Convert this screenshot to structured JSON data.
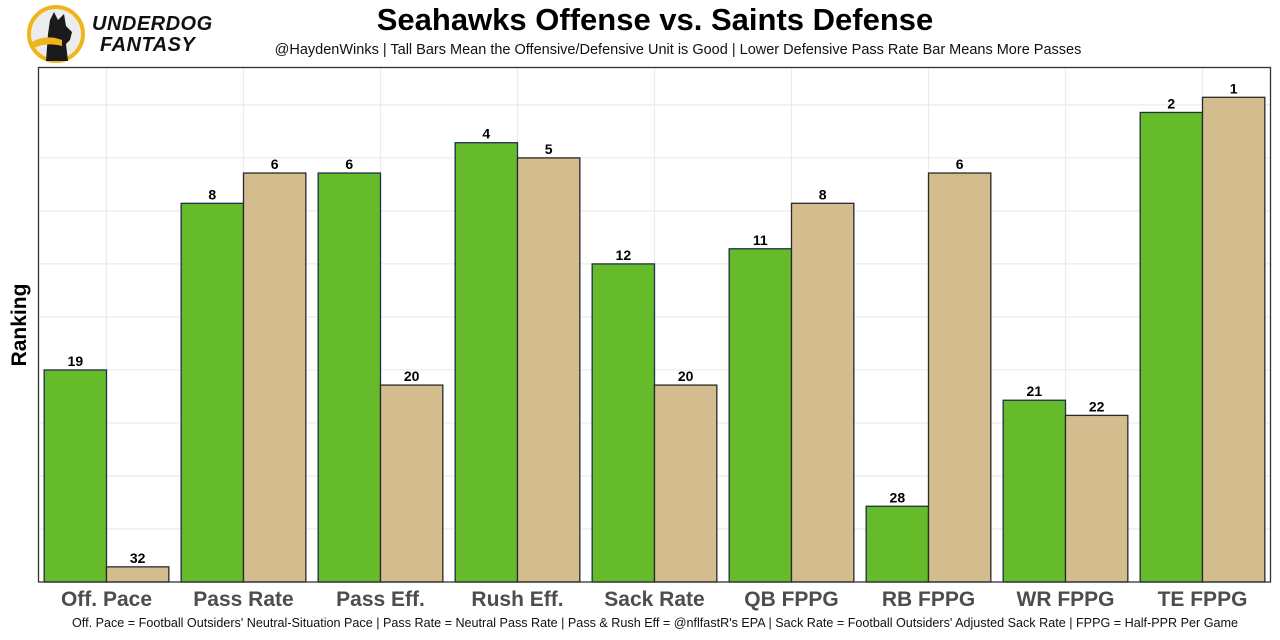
{
  "brand": {
    "logo_line1": "UNDERDOG",
    "logo_line2": "FANTASY",
    "logo_icon": "dog-head-icon",
    "colors": {
      "ring": "#f0b51b",
      "dog": "#1a1a1a"
    }
  },
  "colors": {
    "offense": "#66bb2a",
    "defense": "#d3bc8d",
    "bar_border": "#1f2f4a",
    "grid": "#ebebeb",
    "panel_border": "#333333"
  },
  "chart_data": {
    "type": "bar",
    "title": "Seahawks Offense vs. Saints Defense",
    "subtitle": "@HaydenWinks | Tall Bars Mean the Offensive/Defensive Unit is Good | Lower Defensive Pass Rate Bar Means More Passes",
    "caption": "Off. Pace = Football Outsiders' Neutral-Situation Pace | Pass Rate = Neutral Pass Rate | Pass & Rush Eff = @nflfastR's EPA | Sack Rate = Football Outsiders' Adjusted Sack Rate | FPPG = Half-PPR Per Game",
    "xlabel": "",
    "ylabel": "Ranking",
    "y_axis_note": "bar height = 33 - rank (rank 1 tallest); no y tick labels shown",
    "ylim": [
      0,
      34
    ],
    "grid": true,
    "legend": "none",
    "categories": [
      "Off. Pace",
      "Pass Rate",
      "Pass Eff.",
      "Rush Eff.",
      "Sack Rate",
      "QB FPPG",
      "RB FPPG",
      "WR FPPG",
      "TE FPPG"
    ],
    "series": [
      {
        "name": "Seahawks Offense",
        "values": [
          19,
          8,
          6,
          4,
          12,
          11,
          28,
          21,
          2
        ]
      },
      {
        "name": "Saints Defense",
        "values": [
          32,
          6,
          20,
          5,
          20,
          8,
          6,
          22,
          1
        ]
      }
    ]
  }
}
